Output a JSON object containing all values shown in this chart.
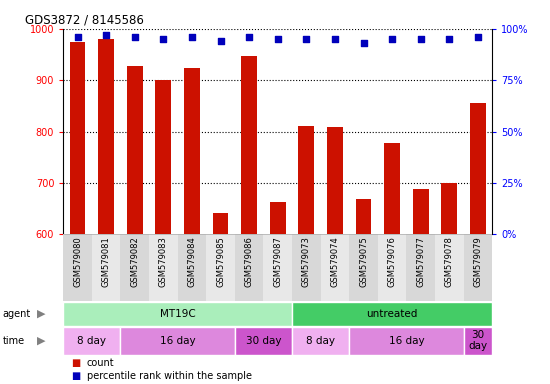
{
  "title": "GDS3872 / 8145586",
  "samples": [
    "GSM579080",
    "GSM579081",
    "GSM579082",
    "GSM579083",
    "GSM579084",
    "GSM579085",
    "GSM579086",
    "GSM579087",
    "GSM579073",
    "GSM579074",
    "GSM579075",
    "GSM579076",
    "GSM579077",
    "GSM579078",
    "GSM579079"
  ],
  "counts": [
    975,
    980,
    928,
    900,
    924,
    642,
    947,
    663,
    810,
    808,
    668,
    777,
    688,
    700,
    855
  ],
  "percentile_ranks": [
    96,
    97,
    96,
    95,
    96,
    94,
    96,
    95,
    95,
    95,
    93,
    95,
    95,
    95,
    96
  ],
  "ylim_left": [
    600,
    1000
  ],
  "ylim_right": [
    0,
    100
  ],
  "yticks_left": [
    600,
    700,
    800,
    900,
    1000
  ],
  "ytick_labels_right": [
    "0%",
    "25%",
    "50%",
    "75%",
    "100%"
  ],
  "yticks_right": [
    0,
    25,
    50,
    75,
    100
  ],
  "bar_color": "#cc1100",
  "dot_color": "#0000bb",
  "bg_colors": [
    "#d8d8d8",
    "#e8e8e8"
  ],
  "agent_groups": [
    {
      "label": "MT19C",
      "start": 0,
      "end": 8,
      "color": "#aaeebb"
    },
    {
      "label": "untreated",
      "start": 8,
      "end": 15,
      "color": "#44cc66"
    }
  ],
  "time_groups": [
    {
      "label": "8 day",
      "start": 0,
      "end": 2,
      "color": "#f0b0f0"
    },
    {
      "label": "16 day",
      "start": 2,
      "end": 6,
      "color": "#dd88dd"
    },
    {
      "label": "30 day",
      "start": 6,
      "end": 8,
      "color": "#cc55cc"
    },
    {
      "label": "8 day",
      "start": 8,
      "end": 10,
      "color": "#f0b0f0"
    },
    {
      "label": "16 day",
      "start": 10,
      "end": 14,
      "color": "#dd88dd"
    },
    {
      "label": "30\nday",
      "start": 14,
      "end": 15,
      "color": "#cc55cc"
    }
  ],
  "legend_count_label": "count",
  "legend_pct_label": "percentile rank within the sample",
  "legend_count_color": "#cc1100",
  "legend_pct_color": "#0000bb"
}
